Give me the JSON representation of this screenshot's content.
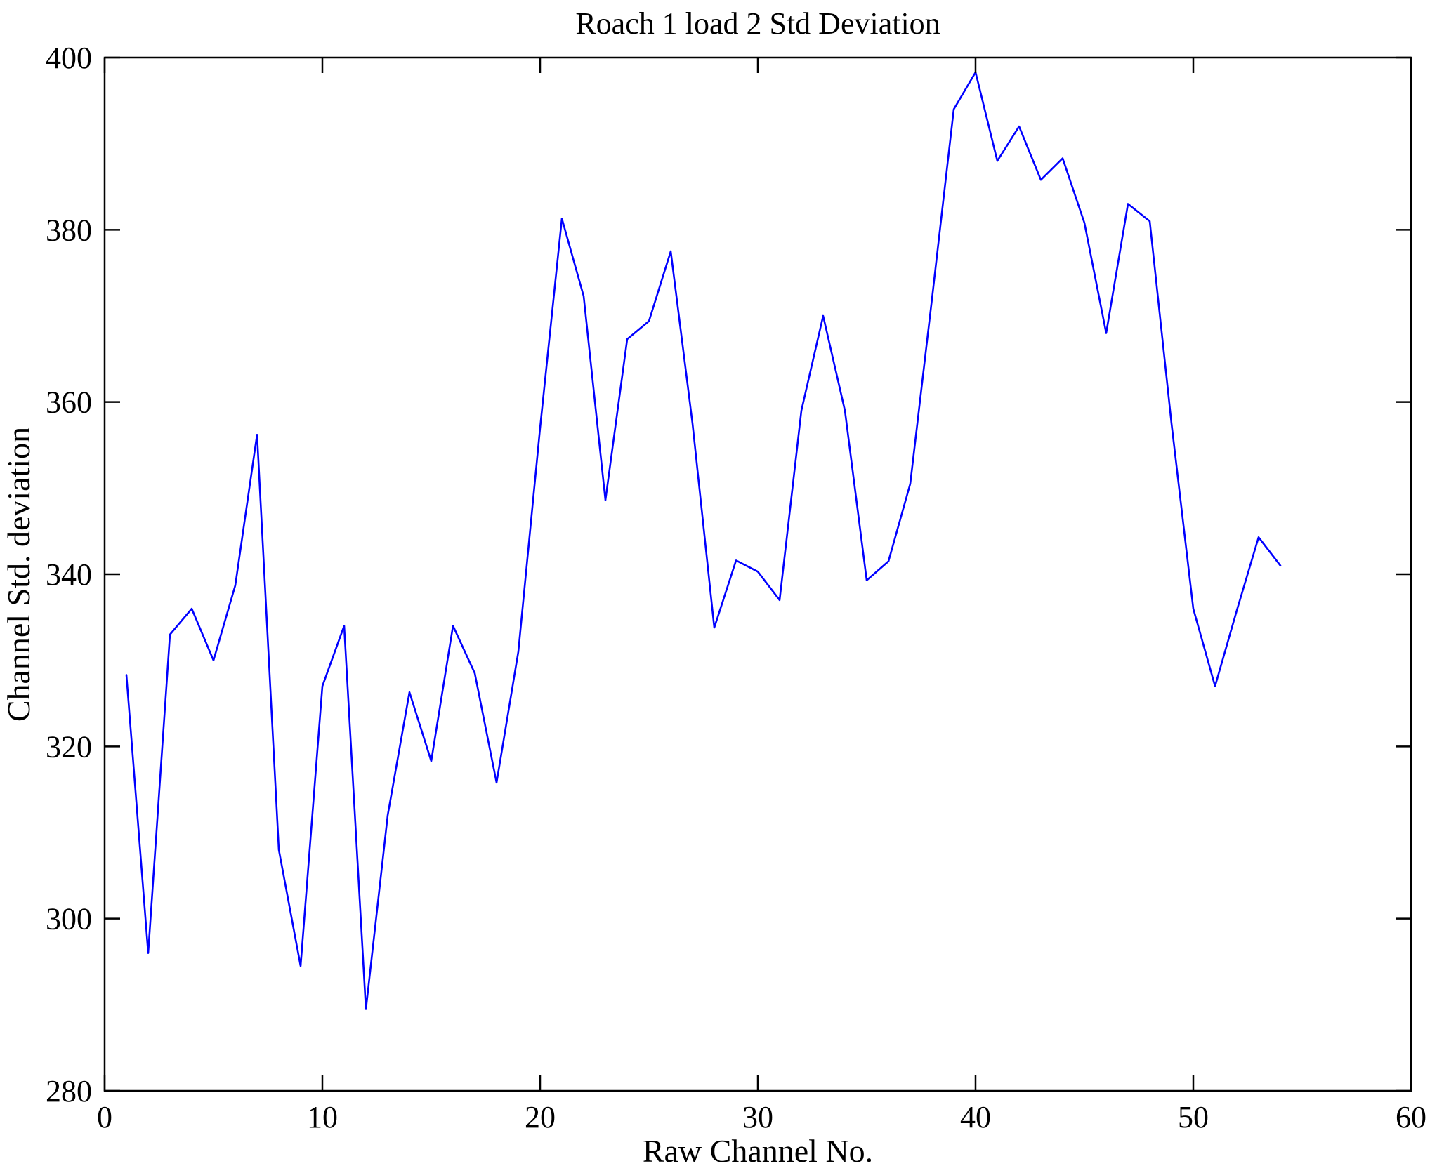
{
  "figure": {
    "background_color": "#ffffff",
    "axes_color": "#000000"
  },
  "chart_data": {
    "type": "line",
    "title": "Roach 1 load 2 Std Deviation",
    "xlabel": "Raw Channel No.",
    "ylabel": "Channel Std. deviation",
    "line_color": "#0000ff",
    "grid": false,
    "legend": null,
    "xlim": [
      0,
      60
    ],
    "ylim": [
      280,
      400
    ],
    "xticks": [
      0,
      10,
      20,
      30,
      40,
      50,
      60
    ],
    "yticks": [
      280,
      300,
      320,
      340,
      360,
      380,
      400
    ],
    "x": [
      1,
      2,
      3,
      4,
      5,
      6,
      7,
      8,
      9,
      10,
      11,
      12,
      13,
      14,
      15,
      16,
      17,
      18,
      19,
      20,
      21,
      22,
      23,
      24,
      25,
      26,
      27,
      28,
      29,
      30,
      31,
      32,
      33,
      34,
      35,
      36,
      37,
      38,
      39,
      40,
      41,
      42,
      43,
      44,
      45,
      46,
      47,
      48,
      49,
      50,
      51,
      52,
      53,
      54
    ],
    "values": [
      328.3,
      296,
      333,
      336,
      330,
      338.7,
      356.2,
      308,
      294.5,
      327,
      334,
      289.5,
      312,
      326.3,
      318.3,
      334,
      328.5,
      315.8,
      331,
      357,
      381.3,
      372.3,
      348.6,
      367.3,
      369.4,
      377.5,
      357.5,
      333.8,
      341.6,
      340.3,
      337,
      359,
      370,
      359,
      339.3,
      341.5,
      350.5,
      372,
      394,
      398.3,
      388,
      392,
      385.8,
      388.3,
      380.8,
      368,
      383,
      381,
      357.5,
      336,
      327,
      335.8,
      344.3,
      341
    ]
  }
}
